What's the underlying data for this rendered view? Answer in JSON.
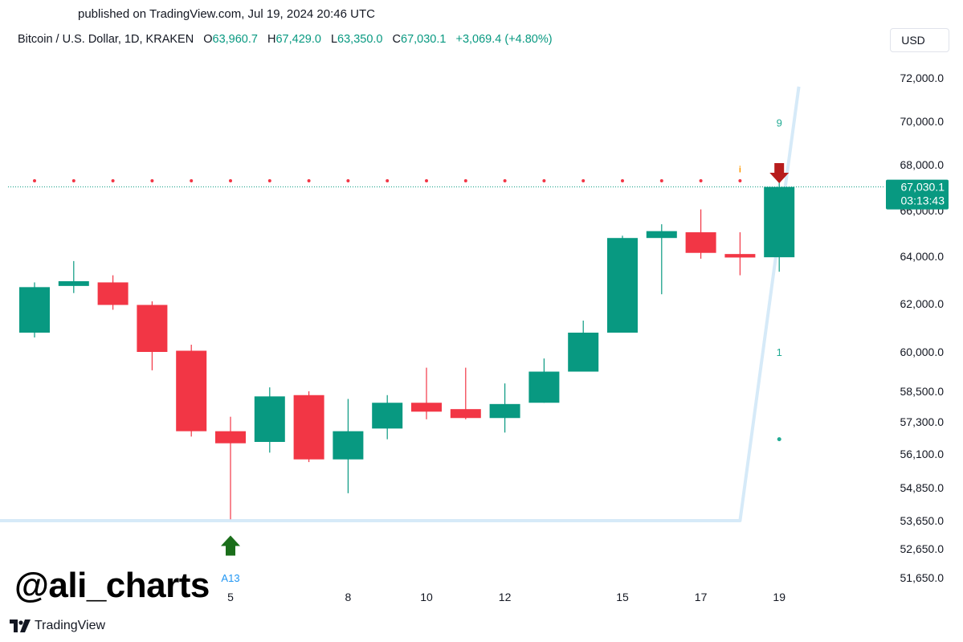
{
  "header": {
    "published": "published on TradingView.com, Jul 19, 2024 20:46 UTC"
  },
  "legend": {
    "symbol": "Bitcoin / U.S. Dollar, 1D, KRAKEN",
    "open_label": "O",
    "open": "63,960.7",
    "high_label": "H",
    "high": "67,429.0",
    "low_label": "L",
    "low": "63,350.0",
    "close_label": "C",
    "close": "67,030.1",
    "change": "+3,069.4 (+4.80%)"
  },
  "currency_button": "USD",
  "watermark": "@ali_charts",
  "brand": "TradingView",
  "colors": {
    "up": "#089981",
    "down": "#f23645",
    "trendline": "#d6eaf8",
    "signal_green": "#1a6e1a",
    "signal_red": "#b71c1c",
    "label_green": "#22ab94",
    "label_blue": "#2196f3",
    "info_orange": "#ff9800"
  },
  "chart_data": {
    "type": "candlestick",
    "y_axis_ticks": [
      {
        "value": 72000,
        "label": "72,000.0"
      },
      {
        "value": 70000,
        "label": "70,000.0"
      },
      {
        "value": 68000,
        "label": "68,000.0"
      },
      {
        "value": 66000,
        "label": "66,000.0"
      },
      {
        "value": 64000,
        "label": "64,000.0"
      },
      {
        "value": 62000,
        "label": "62,000.0"
      },
      {
        "value": 60000,
        "label": "60,000.0"
      },
      {
        "value": 58500,
        "label": "58,500.0"
      },
      {
        "value": 57300,
        "label": "57,300.0"
      },
      {
        "value": 56100,
        "label": "56,100.0"
      },
      {
        "value": 54850,
        "label": "54,850.0"
      },
      {
        "value": 53650,
        "label": "53,650.0"
      },
      {
        "value": 52650,
        "label": "52,650.0"
      },
      {
        "value": 51650,
        "label": "51,650.0"
      }
    ],
    "x_axis_ticks": [
      {
        "index": 5,
        "label": "5"
      },
      {
        "index": 8,
        "label": "8"
      },
      {
        "index": 10,
        "label": "10"
      },
      {
        "index": 12,
        "label": "12"
      },
      {
        "index": 15,
        "label": "15"
      },
      {
        "index": 17,
        "label": "17"
      },
      {
        "index": 19,
        "label": "19"
      }
    ],
    "candles": [
      {
        "o": 60800,
        "h": 62900,
        "l": 60600,
        "c": 62700
      },
      {
        "o": 62750,
        "h": 63800,
        "l": 62450,
        "c": 62950
      },
      {
        "o": 62900,
        "h": 63200,
        "l": 61750,
        "c": 61950
      },
      {
        "o": 61950,
        "h": 62100,
        "l": 59300,
        "c": 60000
      },
      {
        "o": 60050,
        "h": 60300,
        "l": 56750,
        "c": 56950
      },
      {
        "o": 56950,
        "h": 57500,
        "l": 53700,
        "c": 56500
      },
      {
        "o": 56550,
        "h": 58650,
        "l": 56150,
        "c": 58300
      },
      {
        "o": 58350,
        "h": 58500,
        "l": 55800,
        "c": 55900
      },
      {
        "o": 55900,
        "h": 58200,
        "l": 54650,
        "c": 56950
      },
      {
        "o": 57050,
        "h": 58350,
        "l": 56650,
        "c": 58050
      },
      {
        "o": 58050,
        "h": 59400,
        "l": 57400,
        "c": 57700
      },
      {
        "o": 57800,
        "h": 59400,
        "l": 57400,
        "c": 57450
      },
      {
        "o": 57450,
        "h": 58800,
        "l": 56900,
        "c": 58000
      },
      {
        "o": 58050,
        "h": 59750,
        "l": 58050,
        "c": 59250
      },
      {
        "o": 59250,
        "h": 61300,
        "l": 59250,
        "c": 60800
      },
      {
        "o": 60800,
        "h": 64900,
        "l": 60800,
        "c": 64800
      },
      {
        "o": 64800,
        "h": 65400,
        "l": 62400,
        "c": 65100
      },
      {
        "o": 65050,
        "h": 66050,
        "l": 63900,
        "c": 64150
      },
      {
        "o": 64100,
        "h": 65050,
        "l": 63200,
        "c": 63950
      },
      {
        "o": 63960.7,
        "h": 67429.0,
        "l": 63350.0,
        "c": 67030.1
      }
    ],
    "resistance_level": 67300,
    "current_price": {
      "value": 67030.1,
      "label": "67,030.1",
      "countdown": "03:13:43"
    },
    "trendline": {
      "points": [
        {
          "index": -1,
          "value": 53650
        },
        {
          "index": 18,
          "value": 53650
        },
        {
          "index": 19.5,
          "value": 71600
        }
      ]
    },
    "signals": [
      {
        "type": "buy-arrow",
        "index": 5,
        "value": 52750,
        "label": "A13",
        "label_value": 51650
      },
      {
        "type": "sell-arrow",
        "index": 19,
        "value": 67650,
        "label": "9",
        "label_value": 69950
      },
      {
        "type": "info",
        "index": 18,
        "value": 67800,
        "label": "i"
      },
      {
        "type": "count",
        "index": 19,
        "value": 60000,
        "label": "1"
      },
      {
        "type": "dot",
        "index": 19,
        "value": 56650,
        "label": ""
      }
    ]
  }
}
